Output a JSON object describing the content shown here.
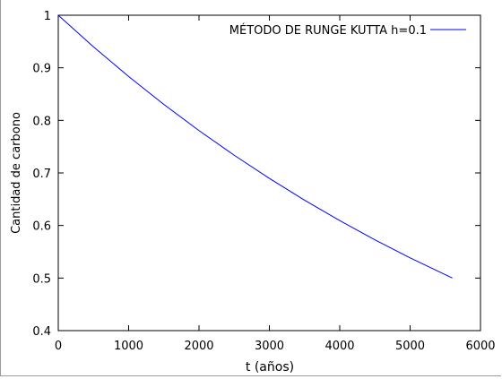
{
  "chart_data": {
    "type": "line",
    "title": "",
    "xlabel": "t (años)",
    "ylabel": "Cantidad de carbono",
    "xlim": [
      0,
      6000
    ],
    "ylim": [
      0.4,
      1
    ],
    "xticks": [
      0,
      1000,
      2000,
      3000,
      4000,
      5000,
      6000
    ],
    "yticks": [
      0.4,
      0.5,
      0.6,
      0.7,
      0.8,
      0.9,
      1
    ],
    "grid": false,
    "legend_position": "top-right",
    "series": [
      {
        "name": "MÉTODO DE RUNGE KUTTA h=0.1",
        "color": "#0000ff",
        "x": [
          0,
          500,
          1000,
          1500,
          2000,
          2500,
          3000,
          3500,
          4000,
          4500,
          5000,
          5600
        ],
        "y": [
          1.0,
          0.9399,
          0.8835,
          0.8304,
          0.7805,
          0.7337,
          0.6896,
          0.6482,
          0.6093,
          0.5727,
          0.5383,
          0.5
        ]
      }
    ]
  }
}
